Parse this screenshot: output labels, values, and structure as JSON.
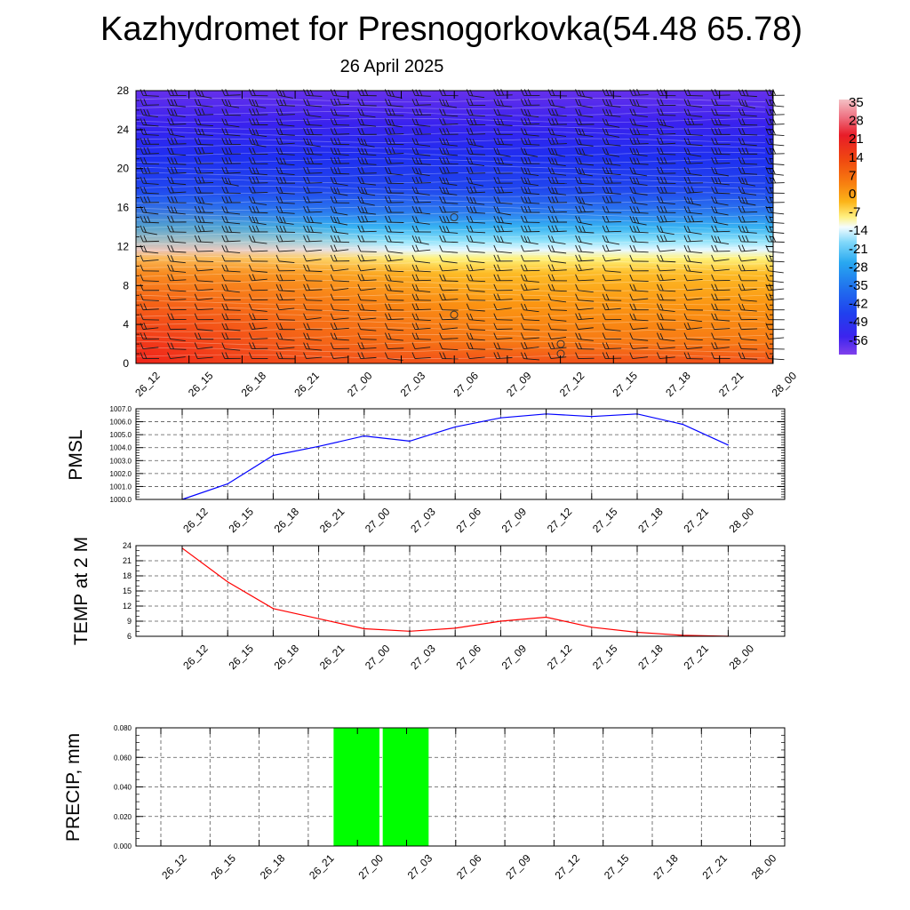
{
  "title": "Kazhydromet for Presnogorkovka(54.48 65.78)",
  "subtitle": "26 April 2025",
  "colors": {
    "pmsl_line": "#0000ff",
    "temp_line": "#ff0000",
    "precip_bar": "#00ff00"
  },
  "chart_data": [
    {
      "type": "heatmap",
      "panel": "cross-section",
      "x_categories": [
        "26_12",
        "26_15",
        "26_18",
        "26_21",
        "27_00",
        "27_03",
        "27_06",
        "27_09",
        "27_12",
        "27_15",
        "27_18",
        "27_21",
        "28_00"
      ],
      "y_ticks": [
        "0",
        "4",
        "8",
        "12",
        "16",
        "20",
        "24",
        "28"
      ],
      "ylim": [
        0,
        28
      ],
      "colorbar": {
        "labels": [
          "35",
          "28",
          "21",
          "14",
          "7",
          "0",
          "-7",
          "-14",
          "-21",
          "-28",
          "-35",
          "-42",
          "-49",
          "-56"
        ],
        "colors": [
          "#f0a0a8",
          "#e83040",
          "#e81010",
          "#f04010",
          "#f87010",
          "#f8a010",
          "#f8d040",
          "#ffff80",
          "#80e0ff",
          "#20b0f0",
          "#2080f0",
          "#2040f0",
          "#4020f0",
          "#8040f0"
        ]
      },
      "overlay": "wind barbs"
    },
    {
      "type": "line",
      "panel": "pmsl",
      "ylabel": "PMSL",
      "categories": [
        "26_12",
        "26_15",
        "26_18",
        "26_21",
        "27_00",
        "27_03",
        "27_06",
        "27_09",
        "27_12",
        "27_15",
        "27_18",
        "27_21",
        "28_00"
      ],
      "values": [
        1000.0,
        1001.2,
        1003.4,
        1004.1,
        1004.9,
        1004.5,
        1005.6,
        1006.3,
        1006.6,
        1006.4,
        1006.6,
        1005.8,
        1004.2
      ],
      "ylim": [
        1000.0,
        1007.0
      ],
      "y_ticks": [
        "1000.0",
        "1001.0",
        "1002.0",
        "1003.0",
        "1004.0",
        "1005.0",
        "1006.0",
        "1007.0"
      ],
      "grid": true
    },
    {
      "type": "line",
      "panel": "temp2m",
      "ylabel": "TEMP at 2 M",
      "categories": [
        "26_12",
        "26_15",
        "26_18",
        "26_21",
        "27_00",
        "27_03",
        "27_06",
        "27_09",
        "27_12",
        "27_15",
        "27_18",
        "27_21",
        "28_00"
      ],
      "values": [
        23.5,
        16.8,
        11.5,
        9.5,
        7.5,
        7.0,
        7.6,
        9.0,
        9.8,
        7.8,
        6.8,
        6.2,
        6.0
      ],
      "ylim": [
        6,
        24
      ],
      "y_ticks": [
        "6",
        "9",
        "12",
        "15",
        "18",
        "21",
        "24"
      ],
      "grid": true
    },
    {
      "type": "bar",
      "panel": "precip",
      "ylabel": "PRECIP, mm",
      "categories": [
        "26_12",
        "26_15",
        "26_18",
        "26_21",
        "27_00",
        "27_03",
        "27_06",
        "27_09",
        "27_12",
        "27_15",
        "27_18",
        "27_21",
        "28_00"
      ],
      "values": [
        0,
        0,
        0,
        0,
        0.08,
        0.08,
        0,
        0,
        0,
        0,
        0,
        0,
        0
      ],
      "ylim": [
        0,
        0.08
      ],
      "y_ticks": [
        "0.000",
        "0.020",
        "0.040",
        "0.060",
        "0.080"
      ],
      "grid": true
    }
  ]
}
